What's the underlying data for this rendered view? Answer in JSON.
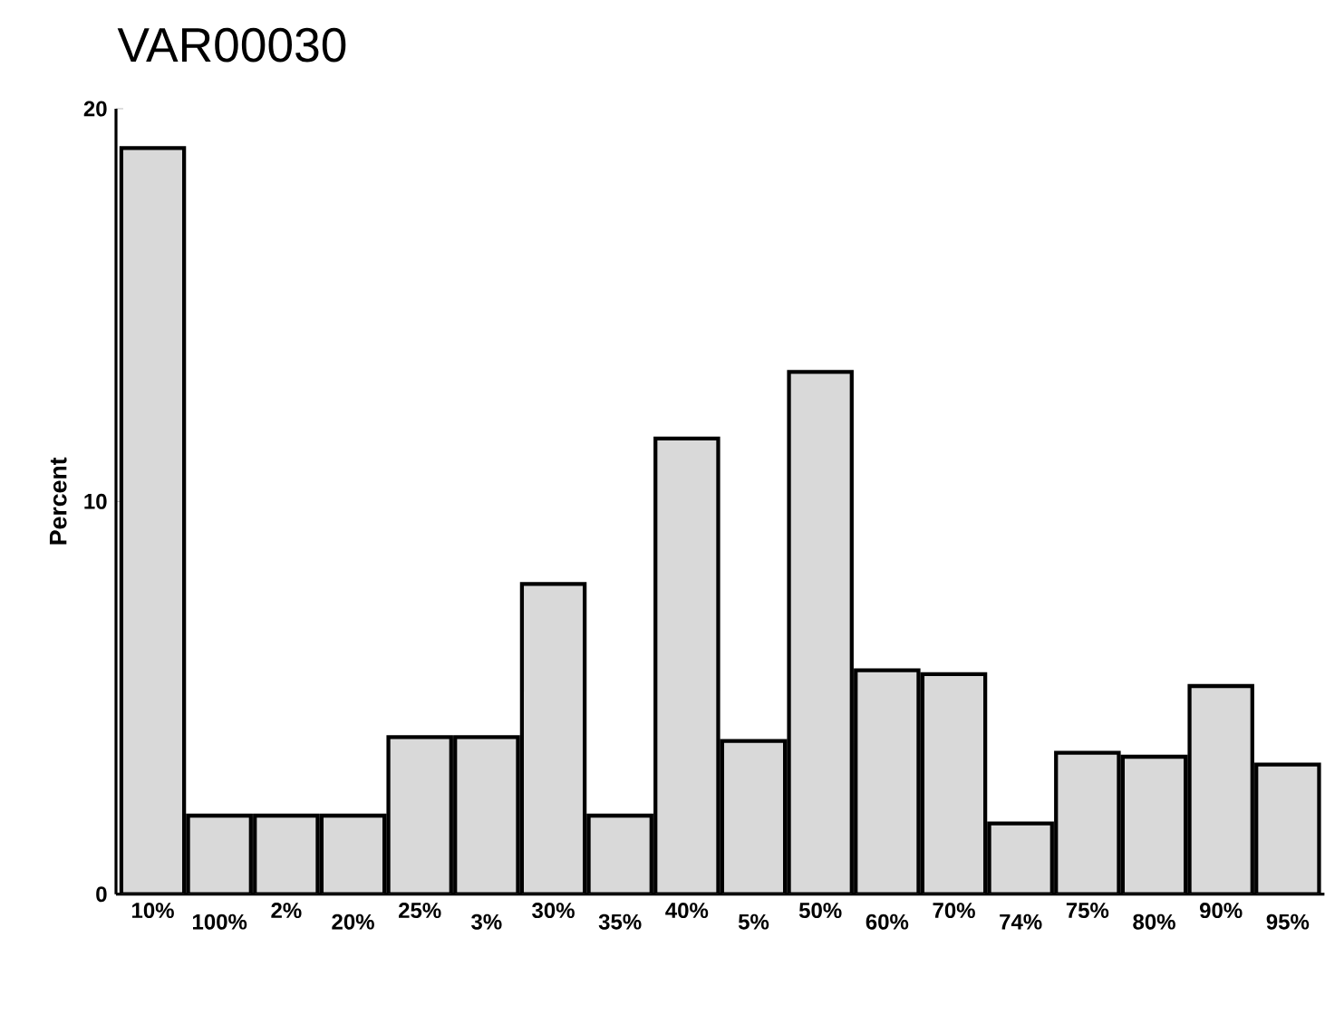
{
  "chart_data": {
    "type": "bar",
    "title": "VAR00030",
    "ylabel": "Percent",
    "categories": [
      "10%",
      "100%",
      "2%",
      "20%",
      "25%",
      "3%",
      "30%",
      "35%",
      "40%",
      "5%",
      "50%",
      "60%",
      "70%",
      "74%",
      "75%",
      "80%",
      "90%",
      "95%"
    ],
    "values": [
      19.0,
      2.0,
      2.0,
      2.0,
      4.0,
      4.0,
      7.9,
      2.0,
      11.6,
      3.9,
      13.3,
      5.7,
      5.6,
      1.8,
      3.6,
      3.5,
      5.3,
      3.3
    ],
    "color": "#d9d9d9",
    "ylim": [
      0,
      20
    ],
    "yticks": [
      0,
      10,
      20
    ]
  }
}
